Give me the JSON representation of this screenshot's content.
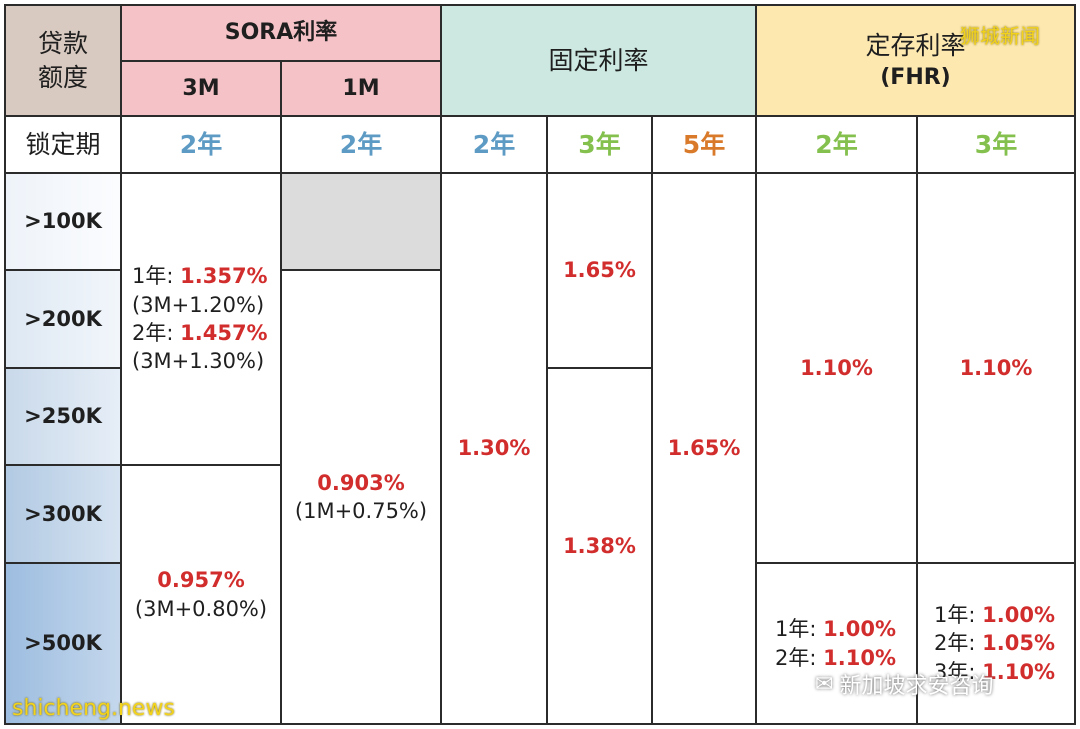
{
  "header": {
    "loan_amount": "贷款额度",
    "sora": "SORA利率",
    "sora_3m": "3M",
    "sora_1m": "1M",
    "fixed": "固定利率",
    "fhr_line1": "定存利率",
    "fhr_line2": "(FHR)"
  },
  "lock_row": {
    "label": "锁定期",
    "sora3m": "2年",
    "sora1m": "2年",
    "fixed_2y": "2年",
    "fixed_3y": "3年",
    "fixed_5y": "5年",
    "fhr_2y": "2年",
    "fhr_3y": "3年"
  },
  "amounts": [
    ">100K",
    ">200K",
    ">250K",
    ">300K",
    ">500K"
  ],
  "sora3m": {
    "upper": {
      "y1_prefix": "1年: ",
      "y1_rate": "1.357%",
      "y1_note": "(3M+1.20%)",
      "y2_prefix": "2年: ",
      "y2_rate": "1.457%",
      "y2_note": "(3M+1.30%)"
    },
    "lower": {
      "rate": "0.957%",
      "note": "(3M+0.80%)"
    }
  },
  "sora1m": {
    "rate": "0.903%",
    "note": "(1M+0.75%)"
  },
  "fixed": {
    "y2": "1.30%",
    "y3_upper": "1.65%",
    "y3_lower": "1.38%",
    "y5": "1.65%"
  },
  "fhr": {
    "y2_upper": "1.10%",
    "y3_upper": "1.10%",
    "y2_lower": {
      "y1_prefix": "1年: ",
      "y1_rate": "1.00%",
      "y2_prefix": "2年: ",
      "y2_rate": "1.10%"
    },
    "y3_lower": {
      "y1_prefix": "1年: ",
      "y1_rate": "1.00%",
      "y2_prefix": "2年: ",
      "y2_rate": "1.05%",
      "y3_prefix": "3年: ",
      "y3_rate": "1.10%"
    }
  },
  "watermarks": {
    "top_right": "狮城新闻",
    "bottom_left": "shicheng.news",
    "wechat": "新加坡求安咨询"
  },
  "colors": {
    "loan_header": "#d8cac0",
    "sora_header": "#f5c3c7",
    "fixed_header": "#cce8e0",
    "fhr_header": "#fde8b0",
    "gray_cell": "#dcdcdc",
    "rate_red": "#d22d2d",
    "term_blue": "#5d9bc4",
    "term_green": "#84c04e",
    "term_orange": "#d97a2a"
  }
}
